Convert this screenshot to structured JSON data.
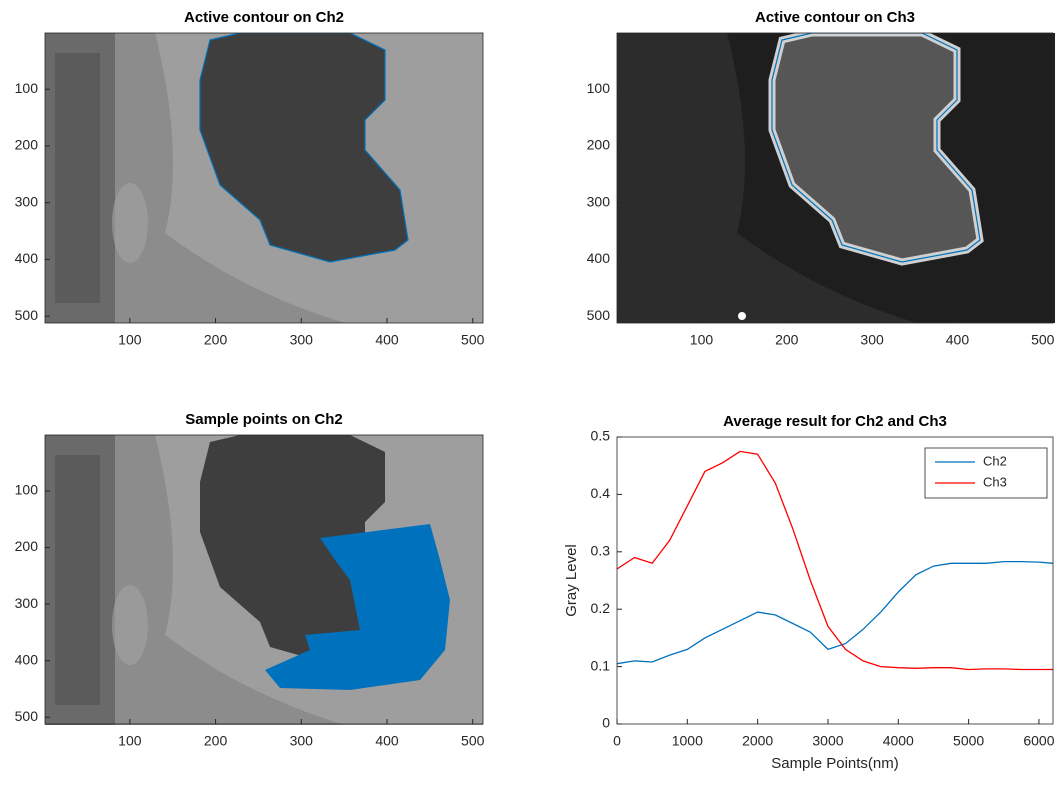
{
  "chart_data": [
    {
      "type": "image",
      "title": "Active contour on Ch2",
      "xlim": [
        1,
        512
      ],
      "ylim": [
        512,
        1
      ],
      "xticks": [
        100,
        200,
        300,
        400,
        500
      ],
      "yticks": [
        100,
        200,
        300,
        400,
        500
      ]
    },
    {
      "type": "image",
      "title": "Active contour on Ch3",
      "xlim": [
        1,
        512
      ],
      "ylim": [
        512,
        1
      ],
      "xticks": [
        100,
        200,
        300,
        400,
        500
      ],
      "yticks": [
        100,
        200,
        300,
        400,
        500
      ]
    },
    {
      "type": "image",
      "title": "Sample points on Ch2",
      "xlim": [
        1,
        512
      ],
      "ylim": [
        512,
        1
      ],
      "xticks": [
        100,
        200,
        300,
        400,
        500
      ],
      "yticks": [
        100,
        200,
        300,
        400,
        500
      ]
    },
    {
      "type": "line",
      "title": "Average result for Ch2 and Ch3",
      "xlabel": "Sample Points(nm)",
      "ylabel": "Gray Level",
      "x": [
        0,
        250,
        500,
        750,
        1000,
        1250,
        1500,
        1750,
        2000,
        2250,
        2500,
        2750,
        3000,
        3250,
        3500,
        3750,
        4000,
        4250,
        4500,
        4750,
        5000,
        5250,
        5500,
        5750,
        6000,
        6200
      ],
      "series": [
        {
          "name": "Ch2",
          "color": "#0072bd",
          "values": [
            0.105,
            0.11,
            0.108,
            0.12,
            0.13,
            0.15,
            0.165,
            0.18,
            0.195,
            0.19,
            0.175,
            0.16,
            0.13,
            0.14,
            0.165,
            0.195,
            0.23,
            0.26,
            0.275,
            0.28,
            0.28,
            0.28,
            0.283,
            0.283,
            0.282,
            0.28
          ]
        },
        {
          "name": "Ch3",
          "color": "#ff0000",
          "values": [
            0.27,
            0.29,
            0.28,
            0.32,
            0.38,
            0.44,
            0.455,
            0.475,
            0.47,
            0.42,
            0.34,
            0.25,
            0.17,
            0.13,
            0.11,
            0.1,
            0.098,
            0.097,
            0.098,
            0.098,
            0.095,
            0.096,
            0.096,
            0.095,
            0.095,
            0.095
          ]
        }
      ],
      "xlim": [
        0,
        6200
      ],
      "ylim": [
        0,
        0.5
      ],
      "xticks": [
        0,
        1000,
        2000,
        3000,
        4000,
        5000,
        6000
      ],
      "yticks": [
        0,
        0.1,
        0.2,
        0.3,
        0.4,
        0.5
      ],
      "legend": "upper right"
    }
  ]
}
